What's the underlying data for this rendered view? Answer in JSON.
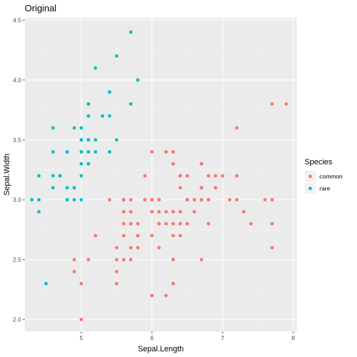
{
  "chart_data": {
    "type": "scatter",
    "title": "Original",
    "xlabel": "Sepal.Length",
    "ylabel": "Sepal.Width",
    "xlim": [
      4.2,
      8.05
    ],
    "ylim": [
      1.9,
      4.52
    ],
    "x_ticks": [
      5,
      6,
      7,
      8
    ],
    "y_ticks": [
      2.0,
      2.5,
      3.0,
      3.5,
      4.0,
      4.5
    ],
    "x_tick_labels": [
      "5",
      "6",
      "7",
      "8"
    ],
    "y_tick_labels": [
      "2.0",
      "2.5",
      "3.0",
      "3.5",
      "4.0",
      "4.5"
    ],
    "grid": true,
    "legend_position": "right",
    "legend_title": "Species",
    "series": [
      {
        "name": "common",
        "color": "#F8766D",
        "points": [
          [
            7.0,
            3.2
          ],
          [
            6.4,
            3.2
          ],
          [
            6.9,
            3.1
          ],
          [
            5.5,
            2.3
          ],
          [
            6.5,
            2.8
          ],
          [
            5.7,
            2.8
          ],
          [
            6.3,
            3.3
          ],
          [
            4.9,
            2.4
          ],
          [
            6.6,
            2.9
          ],
          [
            5.2,
            2.7
          ],
          [
            5.0,
            2.0
          ],
          [
            5.9,
            3.0
          ],
          [
            6.0,
            2.2
          ],
          [
            6.1,
            2.9
          ],
          [
            5.6,
            2.9
          ],
          [
            6.7,
            3.1
          ],
          [
            5.6,
            3.0
          ],
          [
            5.8,
            2.7
          ],
          [
            6.2,
            2.2
          ],
          [
            5.6,
            2.5
          ],
          [
            5.9,
            3.2
          ],
          [
            6.1,
            2.8
          ],
          [
            6.3,
            2.5
          ],
          [
            6.1,
            2.8
          ],
          [
            6.4,
            2.9
          ],
          [
            6.6,
            3.0
          ],
          [
            6.8,
            2.8
          ],
          [
            6.7,
            3.0
          ],
          [
            6.0,
            2.9
          ],
          [
            5.7,
            2.6
          ],
          [
            5.5,
            2.4
          ],
          [
            5.8,
            2.7
          ],
          [
            6.0,
            2.7
          ],
          [
            5.4,
            3.0
          ],
          [
            6.0,
            3.4
          ],
          [
            6.7,
            3.1
          ],
          [
            6.3,
            2.3
          ],
          [
            5.6,
            3.0
          ],
          [
            5.5,
            2.5
          ],
          [
            5.5,
            2.6
          ],
          [
            6.1,
            3.0
          ],
          [
            5.8,
            2.6
          ],
          [
            5.0,
            2.3
          ],
          [
            5.6,
            2.7
          ],
          [
            5.7,
            3.0
          ],
          [
            5.7,
            2.9
          ],
          [
            6.2,
            2.9
          ],
          [
            5.1,
            2.5
          ],
          [
            5.7,
            2.8
          ],
          [
            6.3,
            3.3
          ],
          [
            5.8,
            2.7
          ],
          [
            7.1,
            3.0
          ],
          [
            6.3,
            2.9
          ],
          [
            6.5,
            3.0
          ],
          [
            7.6,
            3.0
          ],
          [
            4.9,
            2.5
          ],
          [
            7.3,
            2.9
          ],
          [
            6.7,
            2.5
          ],
          [
            7.2,
            3.6
          ],
          [
            6.5,
            3.2
          ],
          [
            6.4,
            2.7
          ],
          [
            6.8,
            3.0
          ],
          [
            5.7,
            2.5
          ],
          [
            5.8,
            2.8
          ],
          [
            6.4,
            3.2
          ],
          [
            6.5,
            3.0
          ],
          [
            7.7,
            3.8
          ],
          [
            7.7,
            2.6
          ],
          [
            6.0,
            2.2
          ],
          [
            6.9,
            3.2
          ],
          [
            5.6,
            2.8
          ],
          [
            7.7,
            2.8
          ],
          [
            6.3,
            2.7
          ],
          [
            6.7,
            3.3
          ],
          [
            7.2,
            3.2
          ],
          [
            6.2,
            2.8
          ],
          [
            6.1,
            3.0
          ],
          [
            6.4,
            2.8
          ],
          [
            7.2,
            3.0
          ],
          [
            7.4,
            2.8
          ],
          [
            7.9,
            3.8
          ],
          [
            6.4,
            2.8
          ],
          [
            6.3,
            2.8
          ],
          [
            6.1,
            2.6
          ],
          [
            7.7,
            3.0
          ],
          [
            6.3,
            3.4
          ],
          [
            6.4,
            3.1
          ],
          [
            6.0,
            3.0
          ],
          [
            6.9,
            3.1
          ],
          [
            6.7,
            3.1
          ],
          [
            6.9,
            3.1
          ],
          [
            6.8,
            3.2
          ],
          [
            6.7,
            3.3
          ],
          [
            6.7,
            3.0
          ],
          [
            6.3,
            2.5
          ],
          [
            6.5,
            3.0
          ],
          [
            6.2,
            3.4
          ],
          [
            5.9,
            3.0
          ],
          [
            6.0,
            3.0
          ]
        ]
      },
      {
        "name": "rare",
        "color": "#00BFC4",
        "points": [
          [
            5.1,
            3.5
          ],
          [
            4.9,
            3.0
          ],
          [
            4.7,
            3.2
          ],
          [
            4.6,
            3.1
          ],
          [
            5.0,
            3.6
          ],
          [
            5.4,
            3.9
          ],
          [
            4.6,
            3.4
          ],
          [
            5.0,
            3.4
          ],
          [
            4.4,
            2.9
          ],
          [
            4.9,
            3.1
          ],
          [
            5.4,
            3.7
          ],
          [
            4.8,
            3.4
          ],
          [
            4.8,
            3.0
          ],
          [
            4.3,
            3.0
          ],
          [
            5.8,
            4.0
          ],
          [
            5.7,
            4.4
          ],
          [
            5.4,
            3.9
          ],
          [
            5.1,
            3.5
          ],
          [
            5.7,
            3.8
          ],
          [
            5.1,
            3.8
          ],
          [
            5.4,
            3.4
          ],
          [
            5.1,
            3.7
          ],
          [
            4.6,
            3.6
          ],
          [
            5.1,
            3.3
          ],
          [
            4.8,
            3.4
          ],
          [
            5.0,
            3.0
          ],
          [
            5.0,
            3.4
          ],
          [
            5.2,
            3.5
          ],
          [
            5.2,
            3.4
          ],
          [
            4.7,
            3.2
          ],
          [
            4.8,
            3.1
          ],
          [
            5.4,
            3.4
          ],
          [
            5.2,
            4.1
          ],
          [
            5.5,
            4.2
          ],
          [
            4.9,
            3.1
          ],
          [
            5.0,
            3.2
          ],
          [
            5.5,
            3.5
          ],
          [
            4.9,
            3.6
          ],
          [
            4.4,
            3.0
          ],
          [
            5.1,
            3.4
          ],
          [
            5.0,
            3.5
          ],
          [
            4.5,
            2.3
          ],
          [
            4.4,
            3.2
          ],
          [
            5.0,
            3.5
          ],
          [
            5.1,
            3.8
          ],
          [
            4.8,
            3.0
          ],
          [
            5.1,
            3.8
          ],
          [
            4.6,
            3.2
          ],
          [
            5.3,
            3.7
          ],
          [
            5.0,
            3.3
          ]
        ]
      }
    ]
  }
}
